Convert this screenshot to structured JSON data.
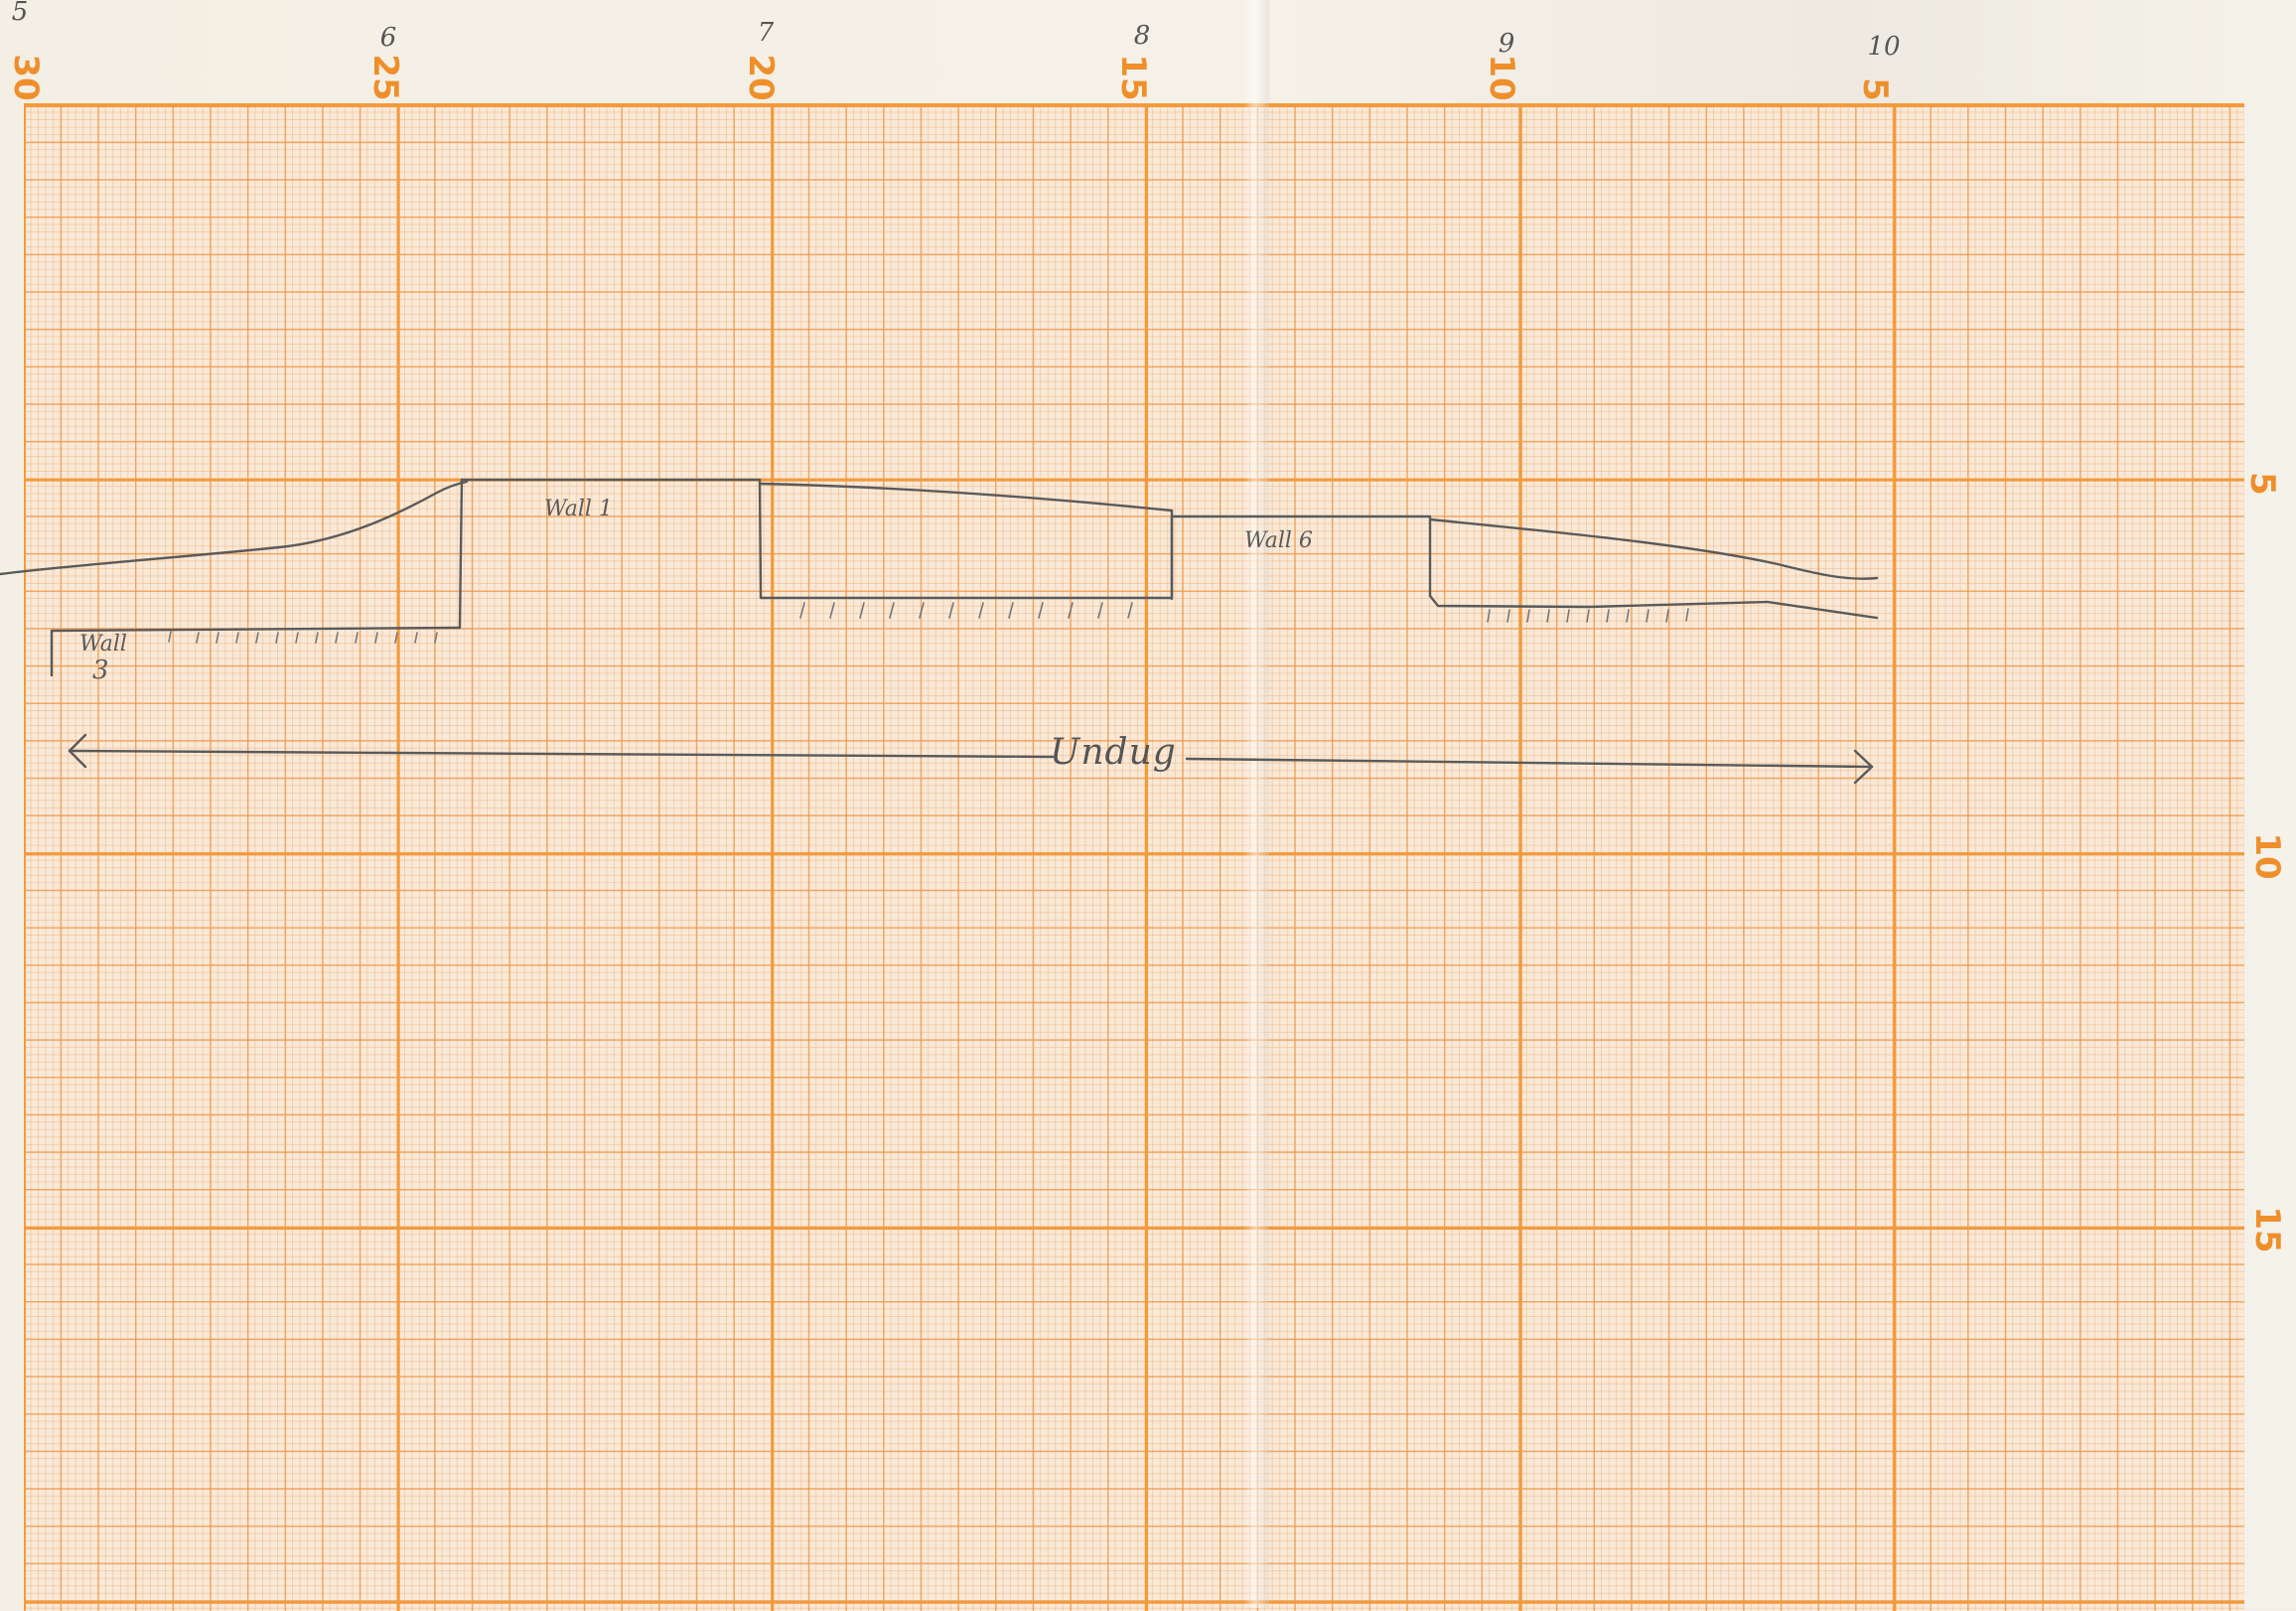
{
  "sheet": {
    "top_scale": [
      "30",
      "25",
      "20",
      "15",
      "10",
      "5"
    ],
    "right_scale": [
      "5",
      "10",
      "15"
    ],
    "handwritten_top": [
      "5",
      "6",
      "7",
      "8",
      "9",
      "10"
    ]
  },
  "section": {
    "wall_labels": {
      "wall_1": "Wall 1",
      "wall_6": "Wall 6",
      "wall_3_line1": "Wall",
      "wall_3_line2": "3"
    },
    "unexcavated_label": "Undug"
  },
  "colors": {
    "grid_major": "#f39a3c",
    "grid_minor": "#f0a05a",
    "pencil": "#5a5a5a",
    "paper": "#f8e9d8"
  }
}
